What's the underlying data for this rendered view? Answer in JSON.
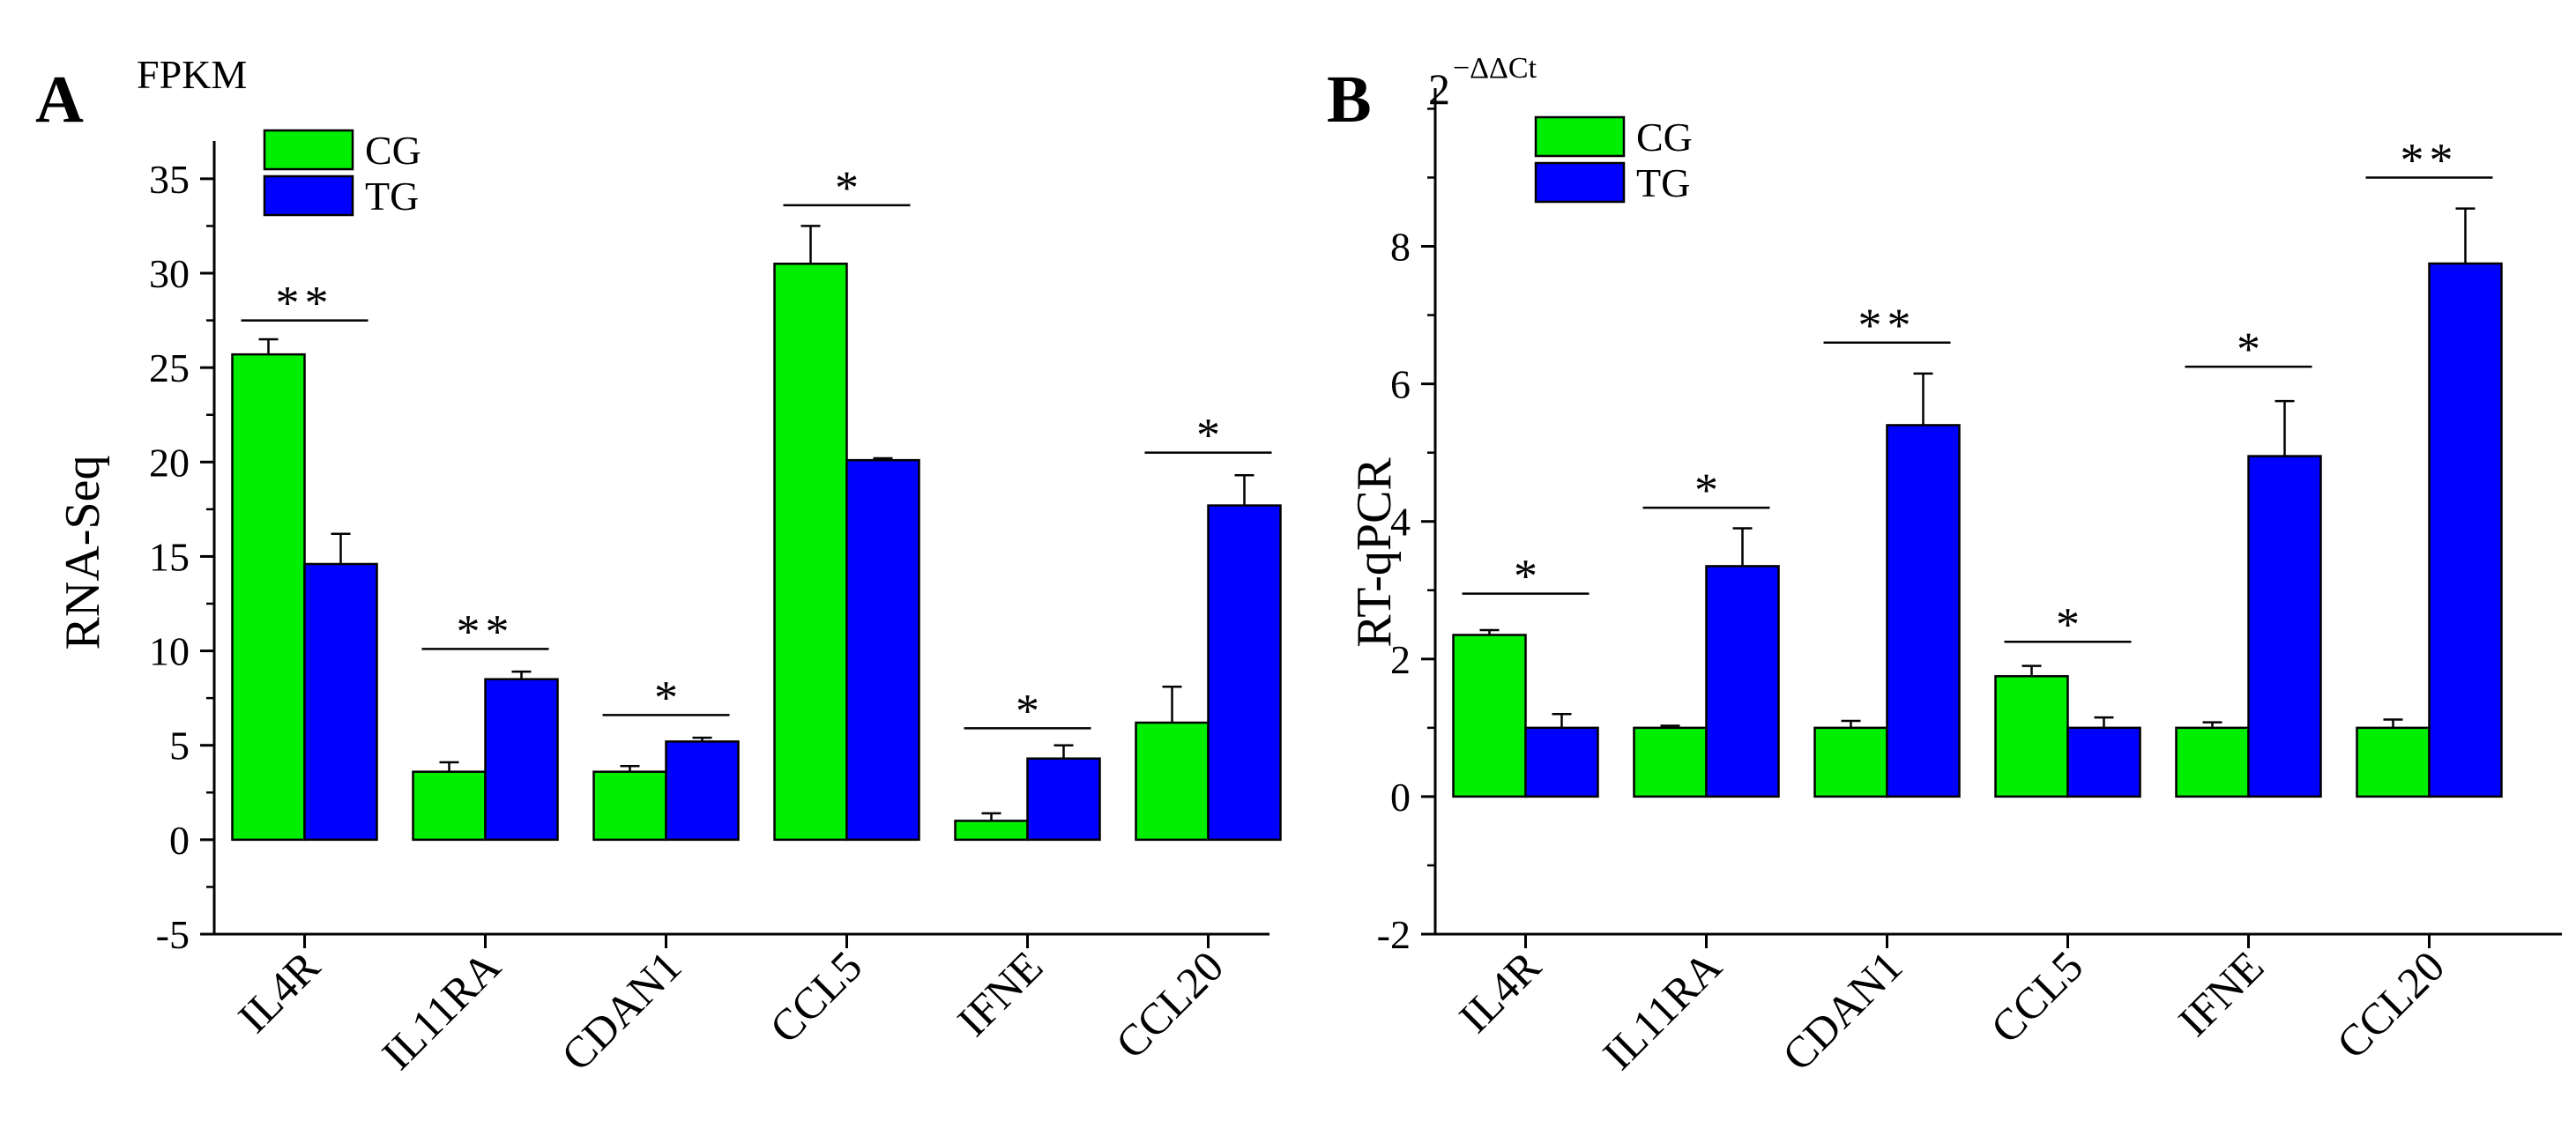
{
  "colors": {
    "cg": "#00ee00",
    "tg": "#0000ff",
    "axis": "#000000",
    "text": "#000000"
  },
  "chart_data": [
    {
      "panel": "A",
      "type": "bar",
      "unit_label": "FPKM",
      "ylabel": "RNA-Seq",
      "xlabel": "",
      "ylim": [
        -5,
        37
      ],
      "yticks": [
        -5,
        0,
        5,
        10,
        15,
        20,
        25,
        30,
        35
      ],
      "grid": false,
      "legend_position": "top-left",
      "categories": [
        "IL4R",
        "IL11RA",
        "CDAN1",
        "CCL5",
        "IFNE",
        "CCL20"
      ],
      "series": [
        {
          "name": "CG",
          "values": [
            25.7,
            3.6,
            3.6,
            30.5,
            1.0,
            6.2
          ],
          "errors": [
            0.8,
            0.5,
            0.3,
            2.0,
            0.4,
            1.9
          ]
        },
        {
          "name": "TG",
          "values": [
            14.6,
            8.5,
            5.2,
            20.1,
            4.3,
            17.7
          ],
          "errors": [
            1.6,
            0.4,
            0.2,
            0.1,
            0.7,
            1.6
          ]
        }
      ],
      "significance": [
        {
          "category": "IL4R",
          "label": "**",
          "y": 27.5
        },
        {
          "category": "IL11RA",
          "label": "**",
          "y": 10.1
        },
        {
          "category": "CDAN1",
          "label": "*",
          "y": 6.6
        },
        {
          "category": "CCL5",
          "label": "*",
          "y": 33.6
        },
        {
          "category": "IFNE",
          "label": "*",
          "y": 5.9
        },
        {
          "category": "CCL20",
          "label": "*",
          "y": 20.5
        }
      ]
    },
    {
      "panel": "B",
      "type": "bar",
      "unit_label": "2",
      "unit_superscript": "−ΔΔCt",
      "ylabel": "RT-qPCR",
      "xlabel": "",
      "ylim": [
        -2,
        10.3
      ],
      "yticks": [
        -2,
        0,
        2,
        4,
        6,
        8
      ],
      "grid": false,
      "legend_position": "top-left",
      "categories": [
        "IL4R",
        "IL11RA",
        "CDAN1",
        "CCL5",
        "IFNE",
        "CCL20"
      ],
      "series": [
        {
          "name": "CG",
          "values": [
            2.35,
            1.0,
            1.0,
            1.75,
            1.0,
            1.0
          ],
          "errors": [
            0.07,
            0.03,
            0.1,
            0.15,
            0.08,
            0.12
          ]
        },
        {
          "name": "TG",
          "values": [
            1.0,
            3.35,
            5.4,
            1.0,
            4.95,
            7.75
          ],
          "errors": [
            0.2,
            0.55,
            0.75,
            0.15,
            0.8,
            0.8
          ]
        }
      ],
      "significance": [
        {
          "category": "IL4R",
          "label": "*",
          "y": 2.95
        },
        {
          "category": "IL11RA",
          "label": "*",
          "y": 4.2
        },
        {
          "category": "CDAN1",
          "label": "**",
          "y": 6.6
        },
        {
          "category": "CCL5",
          "label": "*",
          "y": 2.25
        },
        {
          "category": "IFNE",
          "label": "*",
          "y": 6.25
        },
        {
          "category": "CCL20",
          "label": "**",
          "y": 9.0
        }
      ]
    }
  ]
}
